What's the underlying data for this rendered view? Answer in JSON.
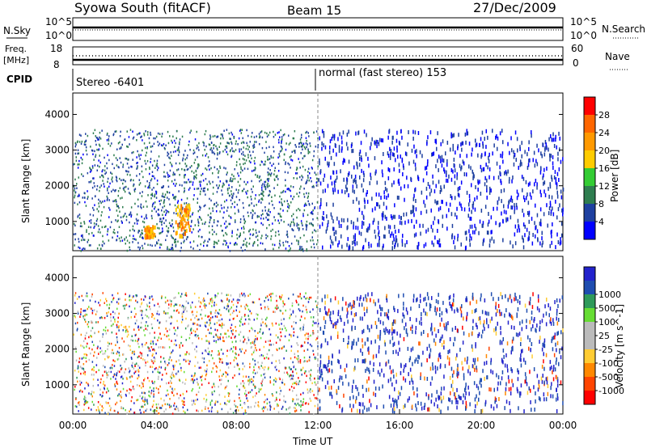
{
  "header": {
    "title": "Syowa South (fitACF)",
    "beam": "Beam 15",
    "date": "27/Dec/2009"
  },
  "top_panels": {
    "nsky_label": "N.Sky",
    "nsky_ticks": [
      "10^5",
      "10^0"
    ],
    "nsearch_label": "N.Search",
    "nsearch_ticks": [
      "10^5",
      "10^0"
    ],
    "freq_label_1": "Freq.",
    "freq_label_2": "[MHz]",
    "freq_ticks": [
      "18",
      "8"
    ],
    "nave_label": "Nave",
    "nave_ticks": [
      "60",
      "0"
    ],
    "cpid_label": "CPID",
    "cpid_left": "Stereo -6401",
    "cpid_right": "normal (fast stereo) 153"
  },
  "colors": {
    "power_scale": [
      "#0000ff",
      "#1e40a0",
      "#2e7d4f",
      "#33cc33",
      "#ffcc00",
      "#ff9900",
      "#ff6600",
      "#ff0000"
    ],
    "velocity_scale": [
      "#ff0000",
      "#ff4400",
      "#ff8800",
      "#ffcc33",
      "#bbbbbb",
      "#bbbbbb",
      "#66dd33",
      "#2e9a5a",
      "#1e4db0",
      "#2222cc"
    ]
  },
  "chart_data": [
    {
      "type": "heatmap",
      "name": "power",
      "ylabel": "Slant Range [km]",
      "yticks": [
        1000,
        2000,
        3000,
        4000
      ],
      "ylim": [
        180,
        4600
      ],
      "xlim": [
        0,
        24
      ],
      "colorbar_label": "Power [dB]",
      "colorbar_ticks": [
        "4",
        "8",
        "12",
        "16",
        "20",
        "24",
        "28"
      ],
      "colorbar_range": [
        0,
        32
      ],
      "patterns": [
        {
          "hours": [
            0,
            12
          ],
          "range_km": [
            200,
            3600
          ],
          "description": "scattered low power echoes",
          "dominant_db": [
            3,
            12
          ]
        },
        {
          "hours": [
            12,
            24
          ],
          "range_km": [
            300,
            3600
          ],
          "description": "sparse low power echoes",
          "dominant_db": [
            2,
            6
          ]
        },
        {
          "hours": [
            3.5,
            4.0
          ],
          "range_km": [
            600,
            900
          ],
          "dominant_db": [
            16,
            26
          ]
        },
        {
          "hours": [
            5.0,
            5.7
          ],
          "range_km": [
            600,
            1500
          ],
          "dominant_db": [
            16,
            28
          ]
        }
      ]
    },
    {
      "type": "heatmap",
      "name": "velocity",
      "ylabel": "Slant Range [km]",
      "yticks": [
        1000,
        2000,
        3000,
        4000
      ],
      "ylim": [
        180,
        4600
      ],
      "xlim": [
        0,
        24
      ],
      "xlabel": "Time UT",
      "xticks": [
        "00:00",
        "04:00",
        "08:00",
        "12:00",
        "16:00",
        "20:00",
        "00:00"
      ],
      "colorbar_label": "Velocity [m s^-1]",
      "colorbar_ticks": [
        "-1000",
        "-500",
        "-100",
        "-25",
        "25",
        "100",
        "500",
        "1000"
      ],
      "patterns": [
        {
          "hours": [
            0,
            12
          ],
          "range_km": [
            200,
            3600
          ],
          "description": "mixed signed velocities"
        },
        {
          "hours": [
            12,
            24
          ],
          "range_km": [
            300,
            3600
          ],
          "description": "mostly positive velocities"
        }
      ]
    }
  ]
}
